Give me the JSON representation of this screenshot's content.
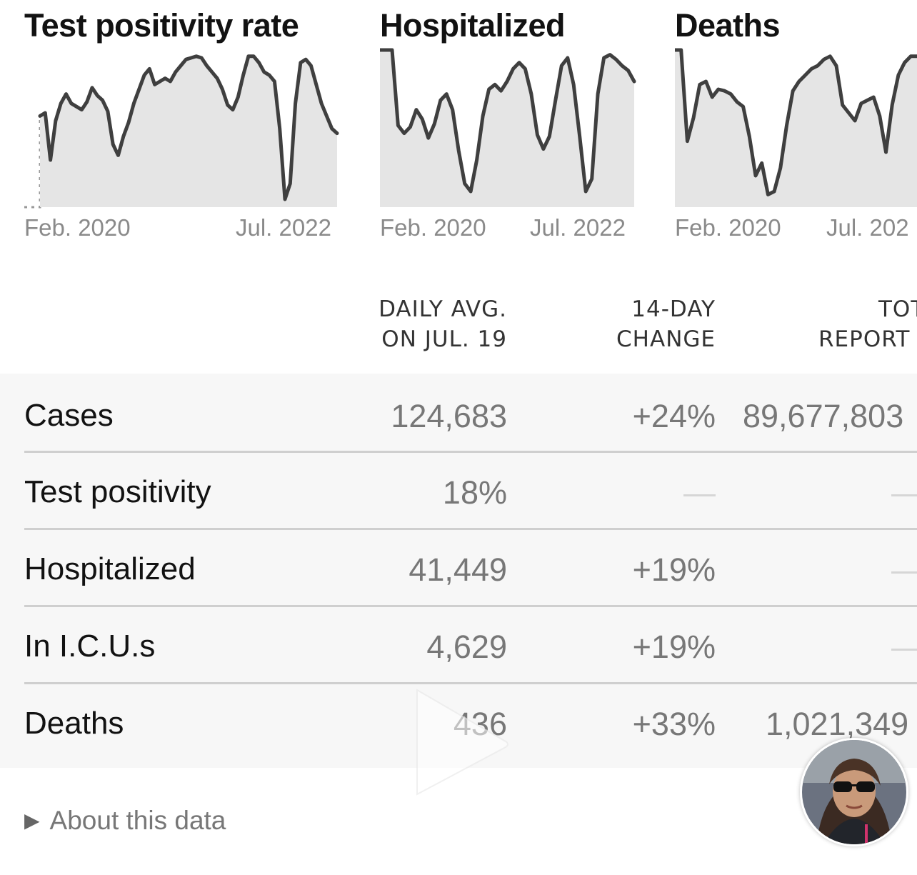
{
  "charts": [
    {
      "title": "Test positivity rate",
      "start_label": "Feb. 2020",
      "end_label": "Jul. 2022"
    },
    {
      "title": "Hospitalized",
      "start_label": "Feb. 2020",
      "end_label": "Jul. 2022"
    },
    {
      "title": "Deaths",
      "start_label": "Feb. 2020",
      "end_label": "Jul. 202"
    }
  ],
  "table": {
    "headers": {
      "daily_avg_line1": "DAILY AVG.",
      "daily_avg_line2": "ON JUL. 19",
      "change_line1": "14-DAY",
      "change_line2": "CHANGE",
      "total_line1": "TOT",
      "total_line2": "REPORT"
    },
    "rows": [
      {
        "label": "Cases",
        "daily_avg": "124,683",
        "change": "+24%",
        "total": "89,677,803"
      },
      {
        "label": "Test positivity",
        "daily_avg": "18%",
        "change": "—",
        "total": "—"
      },
      {
        "label": "Hospitalized",
        "daily_avg": "41,449",
        "change": "+19%",
        "total": "—"
      },
      {
        "label": "In I.C.U.s",
        "daily_avg": "4,629",
        "change": "+19%",
        "total": "—"
      },
      {
        "label": "Deaths",
        "daily_avg": "436",
        "change": "+33%",
        "total": "1,021,349"
      }
    ]
  },
  "about": {
    "label": "About this data"
  },
  "icons": {
    "play": "play-icon",
    "avatar": "avatar",
    "disclosure": "disclosure-triangle-icon"
  },
  "colors": {
    "line": "#3f3f3f",
    "area": "#e5e5e5",
    "row_bg": "#f7f7f7",
    "divider": "#cfcfcf"
  },
  "chart_data": [
    {
      "type": "area",
      "x_range": [
        "Feb. 2020",
        "Jul. 2022"
      ],
      "values": [
        0.58,
        0.6,
        0.3,
        0.55,
        0.66,
        0.72,
        0.66,
        0.64,
        0.62,
        0.67,
        0.76,
        0.71,
        0.68,
        0.61,
        0.4,
        0.33,
        0.45,
        0.54,
        0.66,
        0.75,
        0.84,
        0.88,
        0.78,
        0.8,
        0.82,
        0.8,
        0.86,
        0.9,
        0.94,
        0.95,
        0.96,
        0.95,
        0.9,
        0.86,
        0.82,
        0.75,
        0.65,
        0.62,
        0.7,
        0.84,
        0.96,
        0.96,
        0.92,
        0.86,
        0.84,
        0.8,
        0.5,
        0.05,
        0.15,
        0.66,
        0.92,
        0.94,
        0.9,
        0.78,
        0.66,
        0.58,
        0.5,
        0.47
      ],
      "grid": false
    },
    {
      "type": "area",
      "x_range": [
        "Feb. 2020",
        "Jul. 2022"
      ],
      "values": [
        1.0,
        1.0,
        1.0,
        0.52,
        0.47,
        0.51,
        0.62,
        0.56,
        0.44,
        0.53,
        0.68,
        0.72,
        0.62,
        0.36,
        0.15,
        0.1,
        0.3,
        0.58,
        0.75,
        0.78,
        0.74,
        0.8,
        0.88,
        0.92,
        0.88,
        0.72,
        0.46,
        0.37,
        0.45,
        0.68,
        0.9,
        0.95,
        0.78,
        0.45,
        0.1,
        0.18,
        0.72,
        0.95,
        0.97,
        0.94,
        0.9,
        0.87,
        0.8
      ],
      "grid": false
    },
    {
      "type": "area",
      "x_range": [
        "Feb. 2020",
        "Jul. 202"
      ],
      "values": [
        1.0,
        1.0,
        0.42,
        0.57,
        0.78,
        0.8,
        0.7,
        0.75,
        0.74,
        0.72,
        0.67,
        0.64,
        0.45,
        0.2,
        0.28,
        0.08,
        0.1,
        0.25,
        0.52,
        0.74,
        0.8,
        0.84,
        0.88,
        0.9,
        0.94,
        0.96,
        0.9,
        0.65,
        0.6,
        0.55,
        0.66,
        0.68,
        0.7,
        0.58,
        0.35,
        0.65,
        0.84,
        0.92,
        0.96,
        0.96
      ],
      "grid": false
    }
  ]
}
